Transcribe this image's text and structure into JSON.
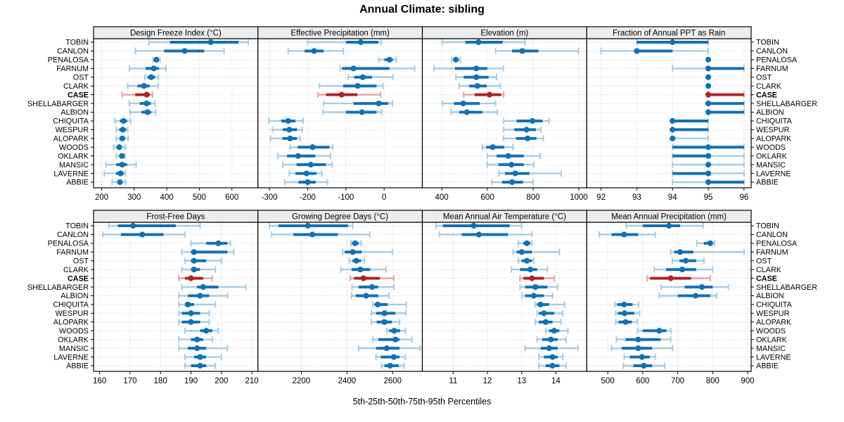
{
  "title": "Annual Climate: sibling",
  "caption": "5th-25th-50th-75th-95th Percentiles",
  "percentiles": [
    5,
    25,
    50,
    75,
    95
  ],
  "stations": [
    "TOBIN",
    "CANLON",
    "PENALOSA",
    "FARNUM",
    "OST",
    "CLARK",
    "CASE",
    "SHELLABARGER",
    "ALBION",
    "CHIQUITA",
    "WESPUR",
    "ALOPARK",
    "WOODS",
    "OKLARK",
    "MANSIC",
    "LAVERNE",
    "ABBIE"
  ],
  "highlight_station": "CASE",
  "colors": {
    "dark_blue": "#1271b5",
    "light_blue": "#a8cce2",
    "dark_red": "#b02326",
    "light_red": "#e8a4a6",
    "strip_bg": "#ececec",
    "panel_border": "#000000",
    "grid": "#c8c8c8",
    "tick": "#000000"
  },
  "chart_data": [
    {
      "type": "interval-dotplot",
      "title": "Design Freeze Index (°C)",
      "xlim": [
        175,
        680
      ],
      "xticks": [
        200,
        300,
        400,
        500,
        600
      ],
      "values": [
        [
          345,
          410,
          535,
          620,
          650
        ],
        [
          304,
          392,
          455,
          515,
          576
        ],
        [
          358,
          363,
          368,
          374,
          379
        ],
        [
          285,
          335,
          360,
          376,
          397
        ],
        [
          333,
          341,
          352,
          364,
          374
        ],
        [
          280,
          310,
          330,
          347,
          373
        ],
        [
          262,
          303,
          338,
          348,
          356
        ],
        [
          285,
          317,
          338,
          351,
          364
        ],
        [
          287,
          322,
          341,
          352,
          366
        ],
        [
          241,
          256,
          267,
          278,
          289
        ],
        [
          245,
          254,
          265,
          275,
          280
        ],
        [
          244,
          255,
          263,
          272,
          281
        ],
        [
          237,
          248,
          254,
          262,
          273
        ],
        [
          245,
          255,
          262,
          268,
          272
        ],
        [
          213,
          245,
          263,
          278,
          306
        ],
        [
          208,
          244,
          258,
          268,
          273
        ],
        [
          232,
          248,
          256,
          264,
          273
        ]
      ]
    },
    {
      "type": "interval-dotplot",
      "title": "Effective Precipitation (mm)",
      "xlim": [
        -330,
        100
      ],
      "xticks": [
        -300,
        -200,
        -100,
        0
      ],
      "values": [
        [
          -200,
          -100,
          -61,
          -15,
          -8
        ],
        [
          -251,
          -208,
          -183,
          -158,
          -107
        ],
        [
          -14,
          1,
          14,
          23,
          32
        ],
        [
          -115,
          -110,
          -80,
          14,
          80
        ],
        [
          -94,
          -78,
          -56,
          -32,
          23
        ],
        [
          -169,
          -107,
          -69,
          -20,
          -3
        ],
        [
          -173,
          -152,
          -111,
          -70,
          -9
        ],
        [
          -158,
          -80,
          -14,
          11,
          22
        ],
        [
          -160,
          -100,
          -58,
          -20,
          -6
        ],
        [
          -302,
          -269,
          -251,
          -232,
          -212
        ],
        [
          -292,
          -265,
          -248,
          -228,
          -214
        ],
        [
          -297,
          -266,
          -246,
          -228,
          -220
        ],
        [
          -246,
          -226,
          -187,
          -143,
          -134
        ],
        [
          -278,
          -254,
          -225,
          -180,
          -140
        ],
        [
          -265,
          -229,
          -192,
          -152,
          -136
        ],
        [
          -248,
          -232,
          -203,
          -177,
          -163
        ],
        [
          -260,
          -224,
          -200,
          -179,
          -148
        ]
      ]
    },
    {
      "type": "interval-dotplot",
      "title": "Elevation (m)",
      "xlim": [
        315,
        1035
      ],
      "xticks": [
        400,
        600,
        800,
        1000
      ],
      "values": [
        [
          402,
          503,
          561,
          667,
          764
        ],
        [
          636,
          708,
          753,
          823,
          999
        ],
        [
          443,
          451,
          462,
          472,
          482
        ],
        [
          366,
          458,
          551,
          599,
          669
        ],
        [
          462,
          496,
          551,
          605,
          640
        ],
        [
          476,
          520,
          556,
          597,
          656
        ],
        [
          496,
          544,
          609,
          660,
          671
        ],
        [
          404,
          453,
          494,
          566,
          636
        ],
        [
          441,
          476,
          510,
          578,
          643
        ],
        [
          671,
          728,
          797,
          841,
          869
        ],
        [
          671,
          718,
          771,
          812,
          835
        ],
        [
          671,
          725,
          776,
          814,
          845
        ],
        [
          578,
          595,
          623,
          674,
          712
        ],
        [
          599,
          640,
          691,
          759,
          831
        ],
        [
          599,
          648,
          705,
          759,
          804
        ],
        [
          650,
          677,
          722,
          784,
          923
        ],
        [
          619,
          664,
          708,
          756,
          800
        ]
      ]
    },
    {
      "type": "interval-dotplot",
      "title": "Fraction of Annual PPT as Rain",
      "xlim": [
        91.6,
        96.2
      ],
      "xticks": [
        92,
        93,
        94,
        95,
        96
      ],
      "values": [
        [
          93,
          93,
          94,
          95,
          95
        ],
        [
          92,
          93,
          93,
          94,
          95
        ],
        [
          95,
          95,
          95,
          95,
          95
        ],
        [
          94,
          95,
          95,
          96,
          96
        ],
        [
          95,
          95,
          95,
          95,
          95
        ],
        [
          95,
          95,
          95,
          95,
          95
        ],
        [
          95,
          95,
          95,
          96,
          96
        ],
        [
          95,
          95,
          95,
          96,
          96
        ],
        [
          95,
          95,
          95,
          96,
          96
        ],
        [
          94,
          94,
          94,
          95,
          95
        ],
        [
          94,
          94,
          94,
          95,
          95
        ],
        [
          94,
          94,
          94,
          94,
          95
        ],
        [
          94,
          94,
          95,
          96,
          96
        ],
        [
          94,
          94,
          95,
          95,
          96
        ],
        [
          94,
          95,
          95,
          95,
          96
        ],
        [
          94,
          94,
          95,
          95,
          96
        ],
        [
          94,
          95,
          95,
          96,
          96
        ]
      ]
    },
    {
      "type": "interval-dotplot",
      "title": "Frost-Free Days",
      "xlim": [
        158,
        212
      ],
      "xticks": [
        160,
        170,
        180,
        190,
        200,
        210
      ],
      "values": [
        [
          163,
          166,
          171,
          185,
          193
        ],
        [
          161,
          167,
          174,
          181,
          188
        ],
        [
          190,
          195,
          199,
          202,
          203
        ],
        [
          187,
          190,
          191,
          202,
          204
        ],
        [
          188,
          190,
          191,
          195,
          200
        ],
        [
          187,
          190,
          191,
          193,
          198
        ],
        [
          186,
          188,
          190,
          194,
          197
        ],
        [
          187,
          192,
          194,
          199,
          208
        ],
        [
          186,
          189,
          193,
          196,
          202
        ],
        [
          186,
          188,
          189,
          191,
          198
        ],
        [
          186,
          187,
          190,
          193,
          196
        ],
        [
          186,
          187,
          190,
          193,
          196
        ],
        [
          188,
          193,
          195,
          197,
          199
        ],
        [
          186,
          190,
          192,
          194,
          197
        ],
        [
          186,
          189,
          192,
          195,
          202
        ],
        [
          188,
          191,
          193,
          195,
          200
        ],
        [
          188,
          190,
          193,
          195,
          198
        ]
      ]
    },
    {
      "type": "interval-dotplot",
      "title": "Growing Degree Days (°C)",
      "xlim": [
        2010,
        2730
      ],
      "xticks": [
        2200,
        2400,
        2600
      ],
      "values": [
        [
          2060,
          2100,
          2228,
          2405,
          2425
        ],
        [
          2070,
          2165,
          2248,
          2360,
          2500
        ],
        [
          2417,
          2422,
          2435,
          2451,
          2462
        ],
        [
          2381,
          2390,
          2425,
          2464,
          2600
        ],
        [
          2410,
          2424,
          2441,
          2461,
          2476
        ],
        [
          2373,
          2420,
          2458,
          2502,
          2571
        ],
        [
          2414,
          2431,
          2472,
          2544,
          2605
        ],
        [
          2422,
          2451,
          2510,
          2537,
          2605
        ],
        [
          2420,
          2438,
          2484,
          2537,
          2584
        ],
        [
          2513,
          2520,
          2535,
          2578,
          2660
        ],
        [
          2507,
          2527,
          2564,
          2612,
          2658
        ],
        [
          2507,
          2530,
          2564,
          2597,
          2630
        ],
        [
          2574,
          2585,
          2607,
          2633,
          2656
        ],
        [
          2513,
          2537,
          2612,
          2630,
          2684
        ],
        [
          2451,
          2527,
          2574,
          2630,
          2720
        ],
        [
          2527,
          2548,
          2605,
          2630,
          2656
        ],
        [
          2551,
          2564,
          2589,
          2626,
          2650
        ]
      ]
    },
    {
      "type": "interval-dotplot",
      "title": "Mean Annual Air Temperature (°C)",
      "xlim": [
        10.1,
        14.9
      ],
      "xticks": [
        11,
        12,
        13,
        14
      ],
      "values": [
        [
          10.5,
          10.7,
          11.6,
          12.65,
          13.0
        ],
        [
          10.6,
          11.25,
          11.75,
          12.6,
          13.3
        ],
        [
          12.9,
          13.05,
          13.15,
          13.25,
          13.3
        ],
        [
          12.75,
          12.85,
          13.0,
          13.3,
          14.1
        ],
        [
          12.9,
          13.0,
          13.15,
          13.3,
          13.35
        ],
        [
          12.7,
          12.95,
          13.25,
          13.45,
          13.75
        ],
        [
          12.95,
          13.05,
          13.3,
          13.65,
          13.95
        ],
        [
          12.95,
          13.1,
          13.4,
          13.75,
          14.05
        ],
        [
          13.0,
          13.1,
          13.35,
          13.65,
          13.9
        ],
        [
          13.4,
          13.45,
          13.55,
          13.8,
          14.25
        ],
        [
          13.45,
          13.5,
          13.65,
          13.95,
          14.2
        ],
        [
          13.4,
          13.5,
          13.7,
          13.9,
          14.15
        ],
        [
          13.7,
          13.8,
          13.95,
          14.1,
          14.35
        ],
        [
          13.45,
          13.6,
          13.85,
          14.05,
          14.3
        ],
        [
          13.1,
          13.55,
          13.8,
          14.05,
          14.65
        ],
        [
          13.5,
          13.65,
          13.9,
          14.05,
          14.2
        ],
        [
          13.5,
          13.7,
          13.9,
          14.1,
          14.3
        ]
      ]
    },
    {
      "type": "interval-dotplot",
      "title": "Mean Annual Precipitation (mm)",
      "xlim": [
        440,
        910
      ],
      "xticks": [
        500,
        600,
        700,
        800,
        900
      ],
      "values": [
        [
          553,
          600,
          675,
          707,
          773
        ],
        [
          476,
          511,
          547,
          587,
          636
        ],
        [
          755,
          775,
          793,
          800,
          805
        ],
        [
          680,
          690,
          707,
          745,
          890
        ],
        [
          685,
          705,
          723,
          753,
          775
        ],
        [
          633,
          667,
          713,
          753,
          800
        ],
        [
          613,
          621,
          680,
          738,
          793
        ],
        [
          653,
          720,
          769,
          800,
          845
        ],
        [
          647,
          700,
          751,
          793,
          811
        ],
        [
          520,
          527,
          547,
          571,
          588
        ],
        [
          523,
          529,
          548,
          576,
          591
        ],
        [
          523,
          531,
          551,
          569,
          585
        ],
        [
          585,
          600,
          647,
          668,
          681
        ],
        [
          525,
          551,
          587,
          651,
          680
        ],
        [
          511,
          540,
          587,
          627,
          685
        ],
        [
          547,
          563,
          598,
          620,
          636
        ],
        [
          545,
          573,
          603,
          627,
          663
        ]
      ]
    }
  ]
}
